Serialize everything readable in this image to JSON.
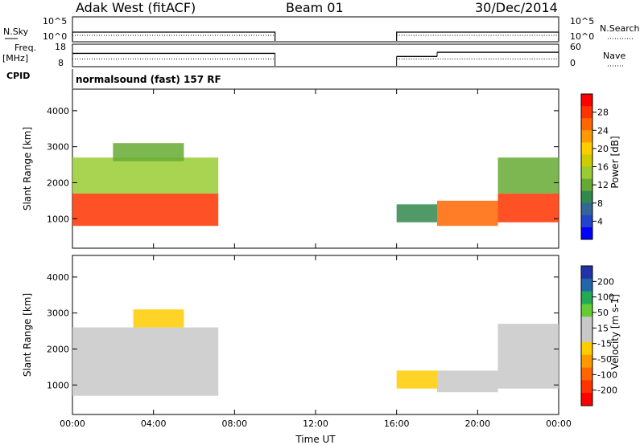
{
  "header": {
    "radar": "Adak West (fitACF)",
    "beam": "Beam 01",
    "date": "30/Dec/2014"
  },
  "top_panels": {
    "nsky_label": "N.Sky",
    "nsky_ticks": [
      "10^5",
      "10^0"
    ],
    "nsearch_label": "N.Search",
    "nsearch_ticks": [
      "10^5",
      "10^0"
    ],
    "freq_label": "Freq.",
    "freq_unit": "[MHz]",
    "freq_ticks": [
      "18",
      "8"
    ],
    "nave_label": "Nave",
    "nave_ticks": [
      "60",
      "0"
    ],
    "cpid_label": "CPID",
    "cpid_text": "normalsound (fast) 157 RF"
  },
  "axes": {
    "xlabel": "Time UT",
    "x_ticks": [
      "00:00",
      "04:00",
      "08:00",
      "12:00",
      "16:00",
      "20:00",
      "00:00"
    ],
    "ylabel": "Slant Range [km]",
    "y_ticks": [
      "1000",
      "2000",
      "3000",
      "4000"
    ]
  },
  "colorbars": {
    "power": {
      "label": "Power [dB]",
      "ticks": [
        "28",
        "24",
        "20",
        "16",
        "12",
        "8",
        "4"
      ],
      "colors": [
        "#ff0000",
        "#ff3300",
        "#ff6600",
        "#ff9900",
        "#ffcc00",
        "#cccc00",
        "#99cc33",
        "#66aa33",
        "#33884d",
        "#336699",
        "#2244cc",
        "#0000ff"
      ]
    },
    "velocity": {
      "label": "Velocity [m s-1]",
      "ticks": [
        "200",
        "100",
        "50",
        "15",
        "-15",
        "-50",
        "-100",
        "-200"
      ],
      "colors": [
        "#2233aa",
        "#2266aa",
        "#22aa55",
        "#66cc33",
        "#c8c8c8",
        "#c8c8c8",
        "#ffcc00",
        "#ff9900",
        "#ff6600",
        "#ff3300",
        "#ff0000"
      ]
    }
  },
  "chart_data": [
    {
      "type": "line",
      "title": "N.Sky / N.Search",
      "xlim": [
        0,
        24
      ],
      "y_scale": "log",
      "ylim": [
        1,
        100000
      ],
      "segments": [
        [
          0,
          10
        ],
        [
          16,
          24
        ]
      ],
      "color": "#000000"
    },
    {
      "type": "line",
      "title": "Freq. / Nave",
      "xlim": [
        0,
        24
      ],
      "freq_ylim": [
        8,
        18
      ],
      "nave_ylim": [
        0,
        60
      ],
      "freq_segments": [
        {
          "x": [
            0,
            10
          ],
          "y": 14
        },
        {
          "x": [
            16,
            18
          ],
          "y": 12.5
        },
        {
          "x": [
            18,
            24
          ],
          "y": 14.5
        }
      ],
      "nave_approx": 20
    },
    {
      "type": "heatmap",
      "title": "Power [dB]",
      "xlim": [
        0,
        24
      ],
      "ylim": [
        180,
        4600
      ],
      "vlim": [
        0,
        30
      ],
      "regions": [
        {
          "x": [
            0,
            7.2
          ],
          "y": [
            800,
            1700
          ],
          "value": 26
        },
        {
          "x": [
            0,
            7.2
          ],
          "y": [
            1700,
            2700
          ],
          "value": 14
        },
        {
          "x": [
            2,
            5.5
          ],
          "y": [
            2600,
            3100
          ],
          "value": 12
        },
        {
          "x": [
            16,
            18
          ],
          "y": [
            900,
            1400
          ],
          "value": 8
        },
        {
          "x": [
            18,
            21
          ],
          "y": [
            800,
            1500
          ],
          "value": 24
        },
        {
          "x": [
            21,
            24
          ],
          "y": [
            900,
            1700
          ],
          "value": 26
        },
        {
          "x": [
            21,
            24
          ],
          "y": [
            1700,
            2700
          ],
          "value": 12
        }
      ],
      "colormap": "power"
    },
    {
      "type": "heatmap",
      "title": "Velocity [m s-1]",
      "xlim": [
        0,
        24
      ],
      "ylim": [
        180,
        4600
      ],
      "vlim": [
        -250,
        250
      ],
      "regions": [
        {
          "x": [
            0,
            7.2
          ],
          "y": [
            700,
            2600
          ],
          "value": 0
        },
        {
          "x": [
            3,
            5.5
          ],
          "y": [
            2600,
            3100
          ],
          "value": -40
        },
        {
          "x": [
            16,
            18
          ],
          "y": [
            900,
            1400
          ],
          "value": -40
        },
        {
          "x": [
            18,
            21
          ],
          "y": [
            800,
            1400
          ],
          "value": 0
        },
        {
          "x": [
            21,
            24
          ],
          "y": [
            900,
            2700
          ],
          "value": 0
        }
      ],
      "colormap": "velocity"
    }
  ]
}
